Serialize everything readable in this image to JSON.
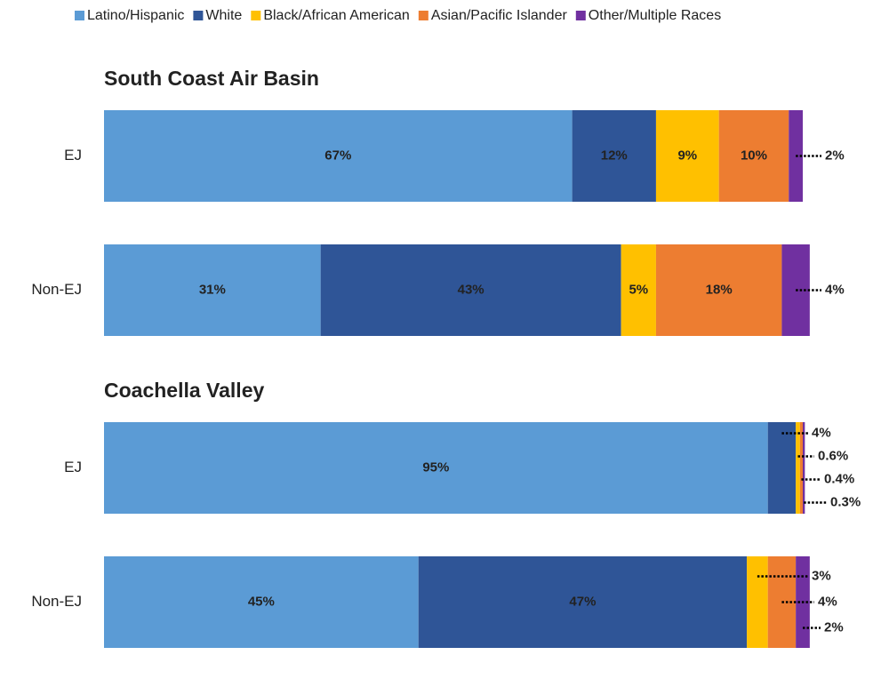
{
  "chart_data": {
    "type": "stacked-bar-horizontal",
    "xlim": [
      0,
      100
    ],
    "groups": [
      {
        "title": "South Coast Air Basin",
        "categories": [
          "EJ",
          "Non-EJ"
        ]
      },
      {
        "title": "Coachella Valley",
        "categories": [
          "EJ",
          "Non-EJ"
        ]
      }
    ],
    "series": [
      {
        "name": "Latino/Hispanic",
        "color": "#5b9bd5",
        "values": [
          67,
          31,
          95,
          45
        ],
        "value_labels": [
          "67%",
          "31%",
          "95%",
          "45%"
        ]
      },
      {
        "name": "White",
        "color": "#2f5597",
        "values": [
          12,
          43,
          4,
          47
        ],
        "value_labels": [
          "12%",
          "43%",
          "4%",
          "47%"
        ]
      },
      {
        "name": "Black/African American",
        "color": "#ffc000",
        "values": [
          9,
          5,
          0.6,
          3
        ],
        "value_labels": [
          "9%",
          "5%",
          "0.6%",
          "3%"
        ]
      },
      {
        "name": "Asian/Pacific Islander",
        "color": "#ed7d31",
        "values": [
          10,
          18,
          0.4,
          4
        ],
        "value_labels": [
          "10%",
          "18%",
          "0.4%",
          "4%"
        ]
      },
      {
        "name": "Other/Multiple Races",
        "color": "#7030a0",
        "values": [
          2,
          4,
          0.3,
          2
        ],
        "value_labels": [
          "2%",
          "4%",
          "0.3%",
          "2%"
        ]
      }
    ]
  }
}
